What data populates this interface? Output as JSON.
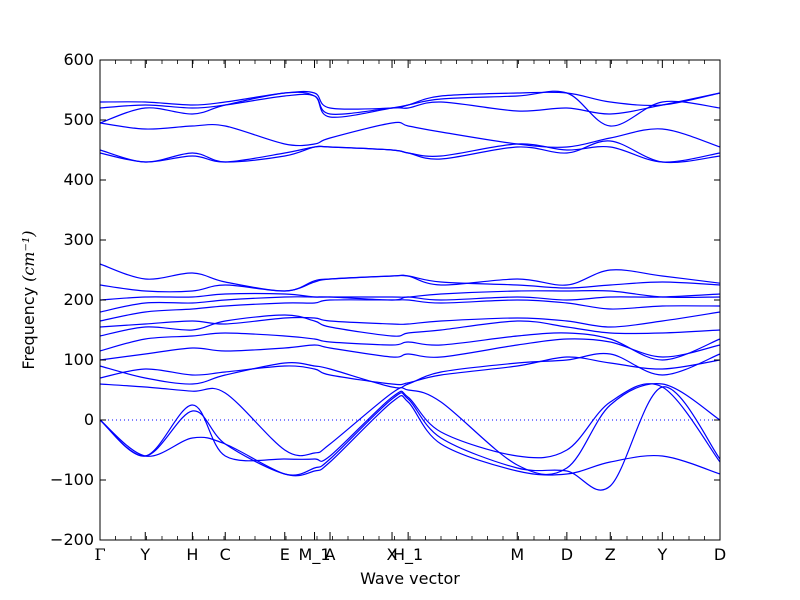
{
  "chart_data": {
    "type": "line",
    "xlabel": "Wave vector",
    "ylabel": "Frequency",
    "ylabel_unit": "(cm⁻¹)",
    "ylim": [
      -200,
      600
    ],
    "yticks": [
      -200,
      -100,
      0,
      100,
      200,
      300,
      400,
      500,
      600
    ],
    "grid": false,
    "zero_line": true,
    "line_color": "#0000ff",
    "x_range": [
      0,
      100
    ],
    "high_symmetry_points": [
      {
        "label": "Γ",
        "x": 0
      },
      {
        "label": "Y",
        "x": 7.3
      },
      {
        "label": "H",
        "x": 14.9
      },
      {
        "label": "C",
        "x": 20.2
      },
      {
        "label": "E",
        "x": 29.8
      },
      {
        "label": "M_1",
        "x": 34.6
      },
      {
        "label": "A",
        "x": 37.1
      },
      {
        "label": "X",
        "x": 47.1
      },
      {
        "label": "H_1",
        "x": 49.7
      },
      {
        "label": "M",
        "x": 67.3
      },
      {
        "label": "D",
        "x": 75.3
      },
      {
        "label": "Z",
        "x": 82.3
      },
      {
        "label": "Y",
        "x": 90.7
      },
      {
        "label": "D",
        "x": 100
      }
    ],
    "x_sample": [
      0,
      7.3,
      14.9,
      20.2,
      29.8,
      34.6,
      37.1,
      47.1,
      49.7,
      55,
      67.3,
      75.3,
      82.3,
      90.7,
      100
    ],
    "bands": [
      {
        "values": [
          0,
          -60,
          -30,
          -40,
          -90,
          -85,
          -70,
          30,
          30,
          -40,
          -85,
          -90,
          -70,
          -60,
          -90
        ]
      },
      {
        "values": [
          0,
          -60,
          15,
          -40,
          -90,
          -80,
          -65,
          35,
          35,
          -30,
          -80,
          -85,
          -110,
          55,
          -65
        ]
      },
      {
        "values": [
          0,
          -60,
          25,
          -60,
          -65,
          -65,
          -60,
          38,
          38,
          -20,
          -60,
          -50,
          30,
          55,
          -70
        ]
      },
      {
        "values": [
          60,
          55,
          48,
          45,
          -50,
          -55,
          -40,
          45,
          50,
          30,
          -75,
          -80,
          25,
          60,
          0
        ]
      },
      {
        "values": [
          70,
          85,
          75,
          80,
          90,
          85,
          75,
          60,
          62,
          75,
          90,
          105,
          95,
          85,
          100
        ]
      },
      {
        "values": [
          90,
          70,
          60,
          75,
          95,
          90,
          85,
          55,
          60,
          80,
          95,
          100,
          110,
          75,
          110
        ]
      },
      {
        "values": [
          100,
          110,
          120,
          115,
          120,
          125,
          120,
          105,
          110,
          105,
          125,
          135,
          130,
          105,
          125
        ]
      },
      {
        "values": [
          115,
          135,
          140,
          145,
          140,
          135,
          130,
          125,
          130,
          125,
          140,
          145,
          135,
          100,
          135
        ]
      },
      {
        "values": [
          140,
          155,
          150,
          165,
          175,
          165,
          155,
          140,
          145,
          150,
          165,
          155,
          145,
          145,
          150
        ]
      },
      {
        "values": [
          155,
          160,
          165,
          160,
          170,
          170,
          165,
          160,
          160,
          165,
          170,
          165,
          155,
          165,
          180
        ]
      },
      {
        "values": [
          165,
          180,
          185,
          190,
          195,
          195,
          200,
          200,
          200,
          195,
          200,
          195,
          185,
          190,
          190
        ]
      },
      {
        "values": [
          180,
          195,
          195,
          200,
          205,
          205,
          205,
          200,
          205,
          200,
          205,
          200,
          205,
          205,
          210
        ]
      },
      {
        "values": [
          200,
          205,
          205,
          210,
          210,
          205,
          205,
          205,
          205,
          210,
          215,
          215,
          215,
          205,
          205
        ]
      },
      {
        "values": [
          225,
          215,
          215,
          225,
          215,
          230,
          235,
          240,
          240,
          230,
          225,
          220,
          225,
          230,
          225
        ]
      },
      {
        "values": [
          260,
          235,
          245,
          230,
          215,
          232,
          235,
          240,
          240,
          225,
          235,
          225,
          250,
          240,
          228
        ]
      },
      {
        "values": [
          450,
          430,
          445,
          430,
          440,
          455,
          455,
          450,
          445,
          435,
          455,
          445,
          465,
          430,
          440
        ]
      },
      {
        "values": [
          445,
          430,
          440,
          430,
          445,
          455,
          455,
          450,
          445,
          440,
          460,
          450,
          455,
          430,
          445
        ]
      },
      {
        "values": [
          495,
          485,
          490,
          490,
          460,
          460,
          470,
          495,
          490,
          480,
          460,
          455,
          470,
          485,
          455
        ]
      },
      {
        "values": [
          495,
          520,
          510,
          525,
          545,
          540,
          505,
          520,
          525,
          535,
          540,
          545,
          490,
          530,
          520
        ]
      },
      {
        "values": [
          520,
          525,
          520,
          525,
          540,
          540,
          510,
          520,
          520,
          530,
          515,
          520,
          510,
          525,
          545
        ]
      },
      {
        "values": [
          530,
          530,
          525,
          530,
          545,
          545,
          520,
          520,
          525,
          540,
          545,
          545,
          530,
          525,
          545
        ]
      }
    ]
  }
}
